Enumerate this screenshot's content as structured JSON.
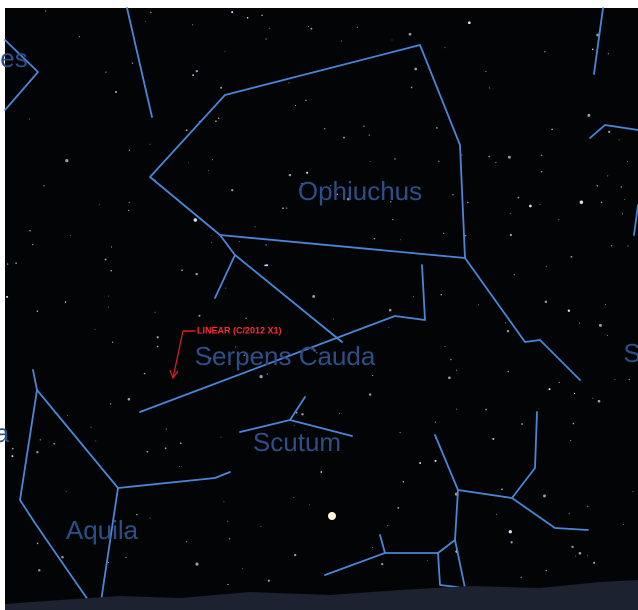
{
  "labels": [
    "es",
    "Ophiuchus",
    "Serpens Cauda",
    "Scutum",
    "Aquila",
    "S",
    "a"
  ],
  "comet": {
    "label": "LINEAR (C/2012 X1)"
  }
}
